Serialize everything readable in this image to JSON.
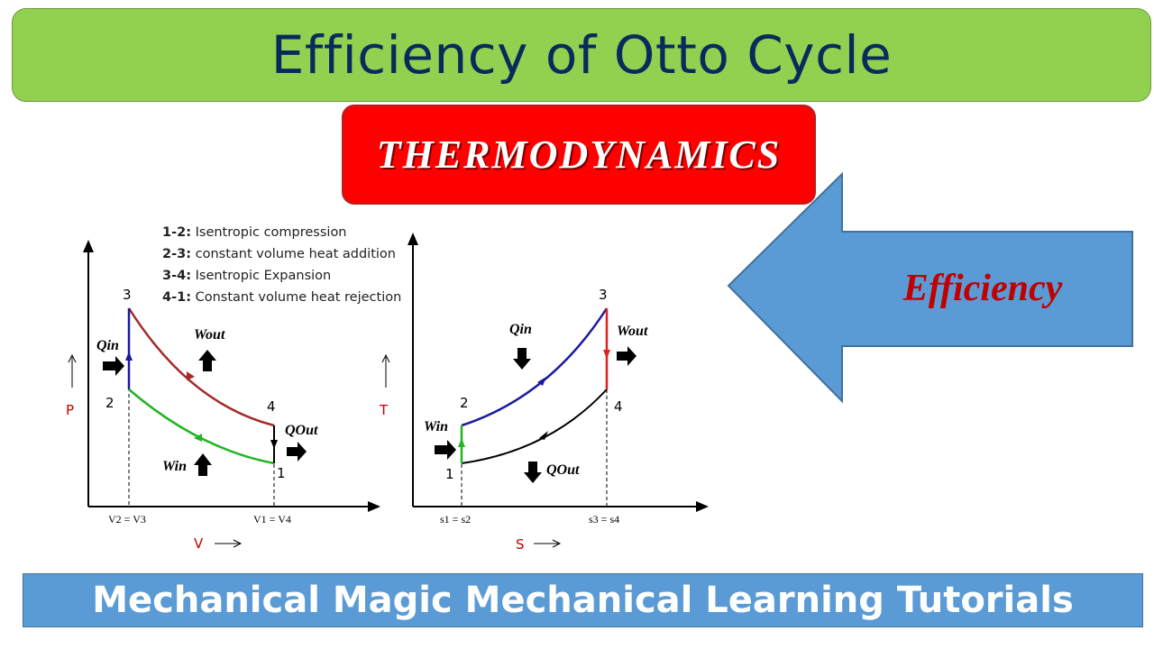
{
  "title": "Efficiency of Otto Cycle",
  "topic": "THERMODYNAMICS",
  "callout": {
    "label": "Efficiency",
    "fill": "#5b9bd5"
  },
  "legend": [
    {
      "key": "1-2:",
      "text": " Isentropic compression"
    },
    {
      "key": "2-3:",
      "text": " constant volume heat addition"
    },
    {
      "key": "3-4:",
      "text": " Isentropic Expansion"
    },
    {
      "key": "4-1:",
      "text": " Constant volume heat rejection"
    }
  ],
  "pv": {
    "y_axis": "P",
    "x_axis": "V",
    "points": [
      "1",
      "2",
      "3",
      "4"
    ],
    "tick_left": "V2 = V3",
    "tick_right": "V1 = V4",
    "q_in": "Qin",
    "q_out": "QOut",
    "w_in": "Win",
    "w_out": "Wout"
  },
  "ts": {
    "y_axis": "T",
    "x_axis": "S",
    "points": [
      "1",
      "2",
      "3",
      "4"
    ],
    "tick_left": "s1 = s2",
    "tick_right": "s3 = s4",
    "q_in": "Qin",
    "q_out": "QOut",
    "w_in": "Win",
    "w_out": "Wout"
  },
  "colors": {
    "expansion": "#a52a2a",
    "compression": "#22b422",
    "heat_add": "#1a1aa0",
    "black": "#000000",
    "axis_label": "#c00000"
  },
  "footer": "Mechanical Magic Mechanical Learning Tutorials"
}
